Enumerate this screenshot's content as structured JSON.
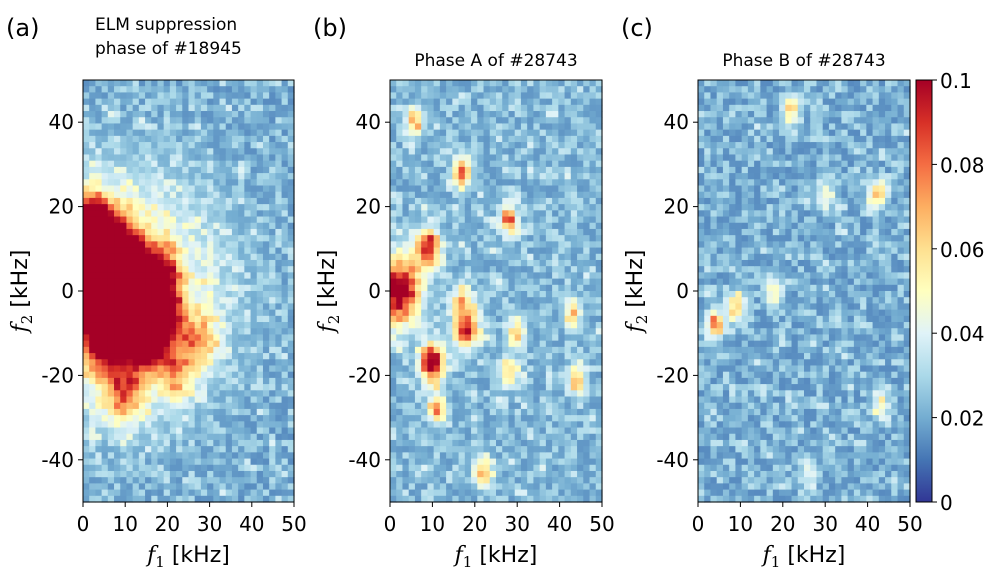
{
  "chart_data": [
    {
      "type": "heatmap",
      "panel_tag": "(a)",
      "title_lines": [
        "ELM suppression",
        "phase of #18945"
      ],
      "xlabel_var": "f",
      "xlabel_sub": "1",
      "xlabel_unit": " [kHz]",
      "ylabel_var": "f",
      "ylabel_sub": "2",
      "ylabel_unit": " [kHz]",
      "xlim": [
        0,
        50
      ],
      "ylim": [
        -50,
        50
      ],
      "xticks": [
        0,
        10,
        20,
        30,
        40,
        50
      ],
      "yticks": [
        40,
        20,
        0,
        -20,
        -40
      ],
      "ytick_labels": [
        "40",
        "20",
        "0",
        "-20",
        "-40"
      ],
      "features": [
        {
          "x": 5,
          "y": 10,
          "v": 0.095,
          "s": 4
        },
        {
          "x": 10,
          "y": 5,
          "v": 0.095,
          "s": 3.5
        },
        {
          "x": 4,
          "y": 0,
          "v": 0.1,
          "s": 3.5
        },
        {
          "x": 13,
          "y": -2,
          "v": 0.095,
          "s": 3.5
        },
        {
          "x": 6,
          "y": -10,
          "v": 0.1,
          "s": 4
        },
        {
          "x": 15,
          "y": -12,
          "v": 0.09,
          "s": 3
        },
        {
          "x": 2,
          "y": 17,
          "v": 0.085,
          "s": 2.5
        },
        {
          "x": 18,
          "y": 3,
          "v": 0.08,
          "s": 3
        },
        {
          "x": 20,
          "y": -7,
          "v": 0.06,
          "s": 3
        },
        {
          "x": 22,
          "y": -20,
          "v": 0.05,
          "s": 3
        },
        {
          "x": 10,
          "y": -25,
          "v": 0.06,
          "s": 3
        },
        {
          "x": 28,
          "y": -12,
          "v": 0.05,
          "s": 3
        }
      ],
      "background": {
        "base": 0.014,
        "halo": 0.045,
        "halo_center": [
          8,
          0
        ],
        "halo_width": 22
      }
    },
    {
      "type": "heatmap",
      "panel_tag": "(b)",
      "title_lines": [
        "Phase A of #28743"
      ],
      "xlabel_var": "f",
      "xlabel_sub": "1",
      "xlabel_unit": " [kHz]",
      "ylabel_var": "f",
      "ylabel_sub": "2",
      "ylabel_unit": " [kHz]",
      "xlim": [
        0,
        50
      ],
      "ylim": [
        -50,
        50
      ],
      "xticks": [
        0,
        10,
        20,
        30,
        40,
        50
      ],
      "yticks": [
        40,
        20,
        0,
        -20,
        -40
      ],
      "ytick_labels": [
        "40",
        "20",
        "0",
        "-20",
        "-40"
      ],
      "features": [
        {
          "x": 2,
          "y": 0,
          "v": 0.1,
          "s": 3.5
        },
        {
          "x": 9,
          "y": 10,
          "v": 0.09,
          "s": 2
        },
        {
          "x": 18,
          "y": -9,
          "v": 0.09,
          "s": 2
        },
        {
          "x": 10,
          "y": -17,
          "v": 0.1,
          "s": 2
        },
        {
          "x": 17,
          "y": 28,
          "v": 0.08,
          "s": 1.5
        },
        {
          "x": 28,
          "y": 17,
          "v": 0.075,
          "s": 1.5
        },
        {
          "x": 11,
          "y": -28,
          "v": 0.07,
          "s": 1.5
        },
        {
          "x": 28,
          "y": -19,
          "v": 0.06,
          "s": 1.5
        },
        {
          "x": 44,
          "y": -21,
          "v": 0.065,
          "s": 1.5
        },
        {
          "x": 22,
          "y": -43,
          "v": 0.065,
          "s": 1.5
        },
        {
          "x": 6,
          "y": 40,
          "v": 0.06,
          "s": 1.5
        },
        {
          "x": 43,
          "y": -5,
          "v": 0.055,
          "s": 1.5
        },
        {
          "x": 17,
          "y": -2,
          "v": 0.06,
          "s": 1.5
        },
        {
          "x": 30,
          "y": -10,
          "v": 0.055,
          "s": 1.5
        }
      ],
      "background": {
        "base": 0.016,
        "halo": 0.0,
        "halo_center": [
          0,
          0
        ],
        "halo_width": 10
      }
    },
    {
      "type": "heatmap",
      "panel_tag": "(c)",
      "title_lines": [
        "Phase B of #28743"
      ],
      "xlabel_var": "f",
      "xlabel_sub": "1",
      "xlabel_unit": " [kHz]",
      "ylabel_var": "f",
      "ylabel_sub": "2",
      "ylabel_unit": " [kHz]",
      "xlim": [
        0,
        50
      ],
      "ylim": [
        -50,
        50
      ],
      "xticks": [
        0,
        10,
        20,
        30,
        40,
        50
      ],
      "yticks": [
        40,
        20,
        0,
        -20,
        -40
      ],
      "ytick_labels": [
        "40",
        "20",
        "0",
        "-20",
        "-40"
      ],
      "features": [
        {
          "x": 4,
          "y": -8,
          "v": 0.07,
          "s": 1.5
        },
        {
          "x": 9,
          "y": -4,
          "v": 0.06,
          "s": 1.5
        },
        {
          "x": 42,
          "y": 23,
          "v": 0.06,
          "s": 1.5
        },
        {
          "x": 22,
          "y": 43,
          "v": 0.055,
          "s": 1.5
        },
        {
          "x": 18,
          "y": 0,
          "v": 0.05,
          "s": 1.5
        },
        {
          "x": 30,
          "y": 23,
          "v": 0.045,
          "s": 1.5
        },
        {
          "x": 43,
          "y": -27,
          "v": 0.045,
          "s": 1.5
        },
        {
          "x": 26,
          "y": -43,
          "v": 0.04,
          "s": 1.5
        }
      ],
      "background": {
        "base": 0.014,
        "halo": 0.0,
        "halo_center": [
          0,
          0
        ],
        "halo_width": 10
      }
    }
  ],
  "colorbar": {
    "vmin": 0,
    "vmax": 0.1,
    "ticks": [
      0,
      0.02,
      0.04,
      0.06,
      0.08,
      0.1
    ],
    "tick_labels": [
      "0",
      "0.02",
      "0.04",
      "0.06",
      "0.08",
      "0.1"
    ],
    "colormap": [
      "#313695",
      "#4575b4",
      "#74add1",
      "#abd9e9",
      "#e0f3f8",
      "#ffffbf",
      "#fee090",
      "#fdae61",
      "#f46d43",
      "#d73027",
      "#a50026"
    ]
  }
}
